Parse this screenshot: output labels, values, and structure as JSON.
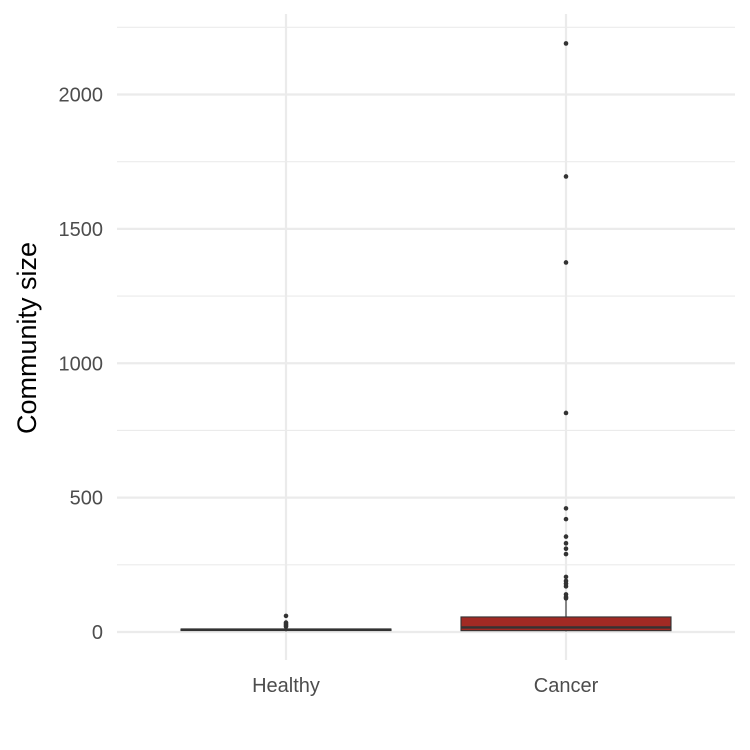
{
  "chart_data": {
    "type": "boxplot",
    "title": "",
    "xlabel": "",
    "ylabel": "Community size",
    "ylim": [
      -100,
      2275
    ],
    "yticks": [
      0,
      500,
      1000,
      1500,
      2000
    ],
    "grid": true,
    "legend": "none",
    "categories": [
      "Healthy",
      "Cancer"
    ],
    "boxes": [
      {
        "category": "Healthy",
        "min": 2,
        "q1": 6,
        "median": 9,
        "q3": 11,
        "max": 15,
        "outliers": [
          20,
          25,
          30,
          35,
          60
        ],
        "fill": "#a12a24"
      },
      {
        "category": "Cancer",
        "min": 2,
        "q1": 5,
        "median": 17,
        "q3": 56,
        "max": 120,
        "outliers": [
          125,
          130,
          140,
          170,
          180,
          190,
          205,
          290,
          310,
          330,
          355,
          420,
          460,
          815,
          1375,
          1695,
          2190
        ],
        "fill": "#a12a24"
      }
    ],
    "colors": {
      "box_fill": "#a12a24",
      "box_line": "#333333",
      "grid": "#ebebeb",
      "point": "#333333"
    }
  }
}
